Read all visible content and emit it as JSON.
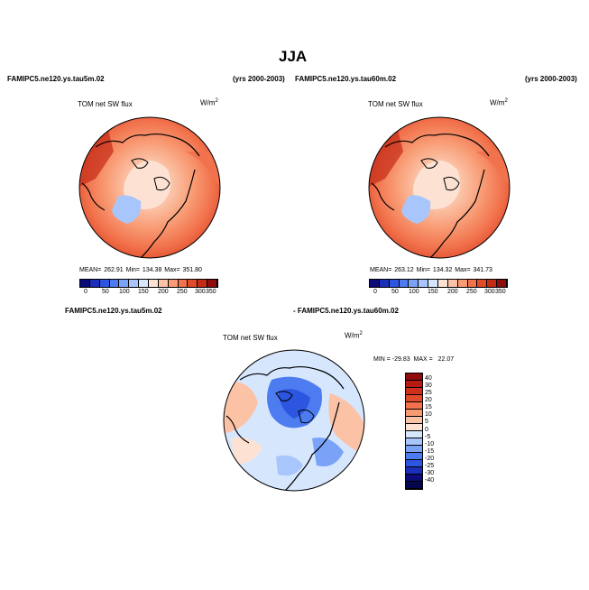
{
  "page": {
    "title": "JJA"
  },
  "panels": [
    {
      "case_label": "FAMIPC5.ne120.ys.tau5m.02",
      "years_label": "(yrs 2000-2003)",
      "variable_label": "TOM net SW flux",
      "units_base": "W/m",
      "units_exp": "2",
      "stats": "MEAN= 262.91   Min= 134.38   Max= 351.80"
    },
    {
      "case_label": "FAMIPC5.ne120.ys.tau60m.02",
      "years_label": "(yrs 2000-2003)",
      "variable_label": "TOM net SW flux",
      "units_base": "W/m",
      "units_exp": "2",
      "stats": "MEAN= 263.12   Min= 134.32   Max= 341.73"
    }
  ],
  "diff_panel": {
    "case_label_left": "FAMIPC5.ne120.ys.tau5m.02",
    "case_label_right": "- FAMIPC5.ne120.ys.tau60m.02",
    "variable_label": "TOM net SW flux",
    "units_base": "W/m",
    "units_exp": "2",
    "stats": "MIN = -29.83  MAX =   22.07"
  },
  "colorbar_main": {
    "labels": [
      "0",
      "50",
      "100",
      "150",
      "200",
      "250",
      "300",
      "350"
    ],
    "colors": [
      "#0b0b7a",
      "#1c2fb8",
      "#2c55e0",
      "#4c7cf0",
      "#7aa3f7",
      "#a8c6fb",
      "#d6e6fd",
      "#fde2d4",
      "#fbc2a6",
      "#f89b74",
      "#f1724c",
      "#e14a2b",
      "#c52b17",
      "#8e0c0c"
    ]
  },
  "colorbar_diff": {
    "labels": [
      "40",
      "30",
      "25",
      "20",
      "15",
      "10",
      "5",
      "0",
      "-5",
      "-10",
      "-15",
      "-20",
      "-25",
      "-30",
      "-40"
    ],
    "colors": [
      "#8e0c0c",
      "#b51b13",
      "#d02f1a",
      "#e14a2b",
      "#f1724c",
      "#f89b74",
      "#fbc2a6",
      "#fde2d4",
      "#d6e6fd",
      "#a8c6fb",
      "#7aa3f7",
      "#4c7cf0",
      "#2c55e0",
      "#1c2fb8",
      "#0b0b7a",
      "#06064f"
    ]
  }
}
